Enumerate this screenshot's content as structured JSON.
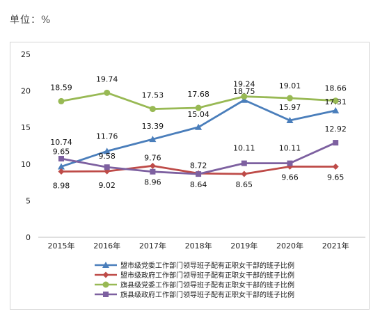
{
  "unit_label": "单位：%",
  "chart_data": {
    "type": "line",
    "categories": [
      "2015年",
      "2016年",
      "2017年",
      "2018年",
      "2019年",
      "2020年",
      "2021年"
    ],
    "ylim": [
      0,
      25
    ],
    "yticks": [
      0,
      5,
      10,
      15,
      20,
      25
    ],
    "grid": false,
    "legend_position": "bottom",
    "series": [
      {
        "name": "盟市级党委工作部门领导班子配有正职女干部的班子比例",
        "color": "#4a7ebb",
        "marker": "triangle",
        "values": [
          9.65,
          11.76,
          13.39,
          15.04,
          18.75,
          15.97,
          17.31
        ]
      },
      {
        "name": "盟市级政府工作部门领导班子配有正职女干部的班子比例",
        "color": "#be4b48",
        "marker": "diamond",
        "values": [
          8.98,
          9.02,
          9.76,
          8.72,
          8.65,
          9.66,
          9.65
        ]
      },
      {
        "name": "旗县级党委工作部门领导班子配有正职女干部的班子比例",
        "color": "#98b954",
        "marker": "circle",
        "values": [
          18.59,
          19.74,
          17.53,
          17.68,
          19.24,
          19.01,
          18.66
        ]
      },
      {
        "name": "旗县级政府工作部门领导班子配有正职女干部的班子比例",
        "color": "#7d60a0",
        "marker": "square",
        "values": [
          10.74,
          9.58,
          8.96,
          8.64,
          10.11,
          10.11,
          12.92
        ]
      }
    ]
  }
}
